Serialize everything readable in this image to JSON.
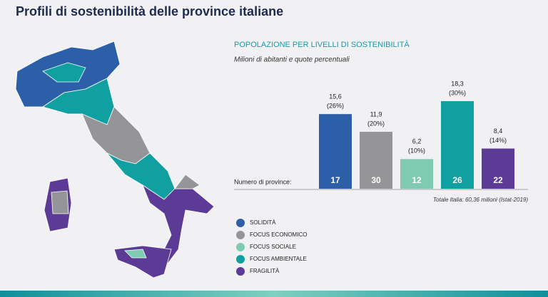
{
  "chart_data": {
    "type": "bar",
    "title": "Profili di sostenibilità delle province italiane",
    "subtitle": "POPOLAZIONE PER LIVELLI DI SOSTENIBILITÀ",
    "caption": "Milioni di abitanti e quote percentuali",
    "count_label": "Numero di province:",
    "note": "Totale Italia: 60,36 milioni (Istat-2019)",
    "categories": [
      "SOLIDITÀ",
      "FOCUS ECONOMICO",
      "FOCUS SOCIALE",
      "FOCUS AMBIENTALE",
      "FRAGILITÀ"
    ],
    "colors": [
      "#2d5fa8",
      "#959597",
      "#7ecbb1",
      "#10a0a2",
      "#5b3b96"
    ],
    "values": [
      15.6,
      11.9,
      6.2,
      18.3,
      8.4
    ],
    "value_labels": [
      "15,6",
      "11,9",
      "6,2",
      "18,3",
      "8,4"
    ],
    "shares": [
      26,
      20,
      10,
      30,
      14
    ],
    "share_labels": [
      "(26%)",
      "(20%)",
      "(10%)",
      "(30%)",
      "(14%)"
    ],
    "counts": [
      17,
      30,
      12,
      26,
      22
    ]
  }
}
